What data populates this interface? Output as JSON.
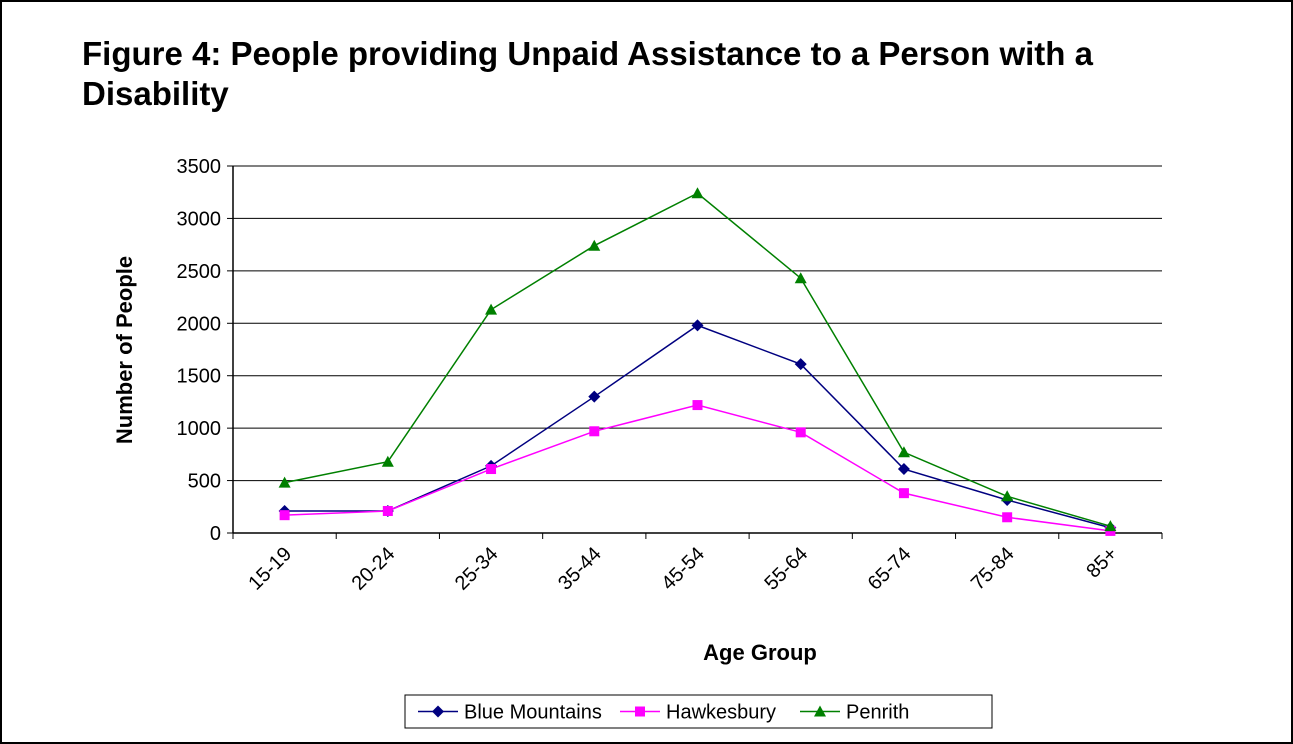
{
  "chart_data": {
    "type": "line",
    "title": "Figure 4: People providing Unpaid Assistance to a Person with a Disability",
    "x_label": "Age Group",
    "y_label": "Number of People",
    "categories": [
      "15-19",
      "20-24",
      "25-34",
      "35-44",
      "45-54",
      "55-64",
      "65-74",
      "75-84",
      "85+"
    ],
    "series": [
      {
        "name": "Blue Mountains",
        "color": "#000080",
        "marker": "diamond",
        "values": [
          210,
          210,
          640,
          1300,
          1980,
          1610,
          610,
          315,
          50
        ]
      },
      {
        "name": "Hawkesbury",
        "color": "#ff00ff",
        "marker": "square",
        "values": [
          170,
          210,
          610,
          970,
          1220,
          960,
          380,
          150,
          20
        ]
      },
      {
        "name": "Penrith",
        "color": "#008000",
        "marker": "triangle",
        "values": [
          480,
          680,
          2130,
          2740,
          3240,
          2430,
          770,
          350,
          65
        ]
      }
    ],
    "ylim": [
      0,
      3500
    ],
    "yticks": [
      0,
      500,
      1000,
      1500,
      2000,
      2500,
      3000,
      3500
    ],
    "grid": true,
    "legend": "bottom"
  }
}
